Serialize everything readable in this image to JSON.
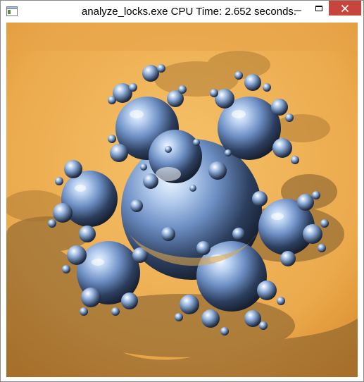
{
  "window": {
    "title": "analyze_locks.exe CPU Time: 2.652 seconds.",
    "icons": {
      "app": "application-window-icon",
      "minimize": "minimize-icon",
      "maximize": "maximize-icon",
      "close": "close-icon"
    },
    "colors": {
      "close_button": "#c7463c",
      "background_light": "#f6c26a",
      "background_dark": "#d88a2a",
      "sphere": "#9db7de"
    }
  },
  "render": {
    "content": "raytraced fractal sphere cluster"
  }
}
